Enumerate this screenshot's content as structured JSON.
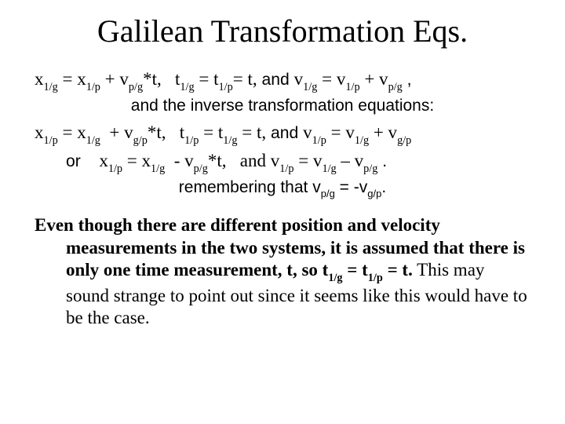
{
  "title": "Galilean Transformation Eqs.",
  "line1": {
    "x_eq_pre": "x",
    "x_eq_sub1": "1/g",
    "eq": " = x",
    "x_eq_sub2": "1/p",
    "plus": " + v",
    "v_sub": "p/g",
    "star_t": "*t,",
    "sp1": "   t",
    "t_sub1": "1/g",
    "eq2": " = t",
    "t_sub2": "1/p",
    "eq_t": "= t,",
    "and1": " and ",
    "v2": "v",
    "v2sub": "1/g",
    "eq3": " = v",
    "v3sub": "1/p",
    "plus2": " + v",
    "v4sub": "p/g",
    "tail": " ,"
  },
  "line1b": "and the inverse transformation equations:",
  "line2": {
    "pre": "x",
    "s1": "1/p",
    "a": " = x",
    "s2": "1/g",
    "b": "  + v",
    "s3": "g/p",
    "c": "*t,",
    "d": "   t",
    "s4": "1/p",
    "e": " = t",
    "s5": "1/g",
    "f": " = t,",
    "and": " and ",
    "g": "v",
    "s6": "1/p",
    "h": " = v",
    "s7": "1/g",
    "i": " + v",
    "s8": "g/p"
  },
  "line3": {
    "or": "or    ",
    "pre": "x",
    "s1": "1/p",
    "a": " = x",
    "s2": "1/g",
    "b": "  - v",
    "s3": "p/g",
    "c": "*t,",
    "d": "   and ",
    "g": "v",
    "s4": "1/p",
    "h": " = v",
    "s5": "1/g",
    "i": " – v",
    "s6": "p/g",
    "tail": " ."
  },
  "line4": {
    "a": "remembering that  v",
    "s1": "p/g",
    "b": " = -v",
    "s2": "g/p",
    "c": "."
  },
  "para": {
    "bold_a": "Even though there are different position and velocity measurements in the two systems, it is assumed that there is only one time measurement, t,  so   t",
    "bold_sub1": "1/g",
    "bold_b": " = t",
    "bold_sub2": "1/p",
    "bold_c": " = t.",
    "rest": "  This may sound strange to point out since it seems like this would have to be the case."
  },
  "colors": {
    "text": "#000000",
    "background": "#ffffff"
  },
  "fonts": {
    "serif": "Times New Roman",
    "sans": "Arial"
  }
}
